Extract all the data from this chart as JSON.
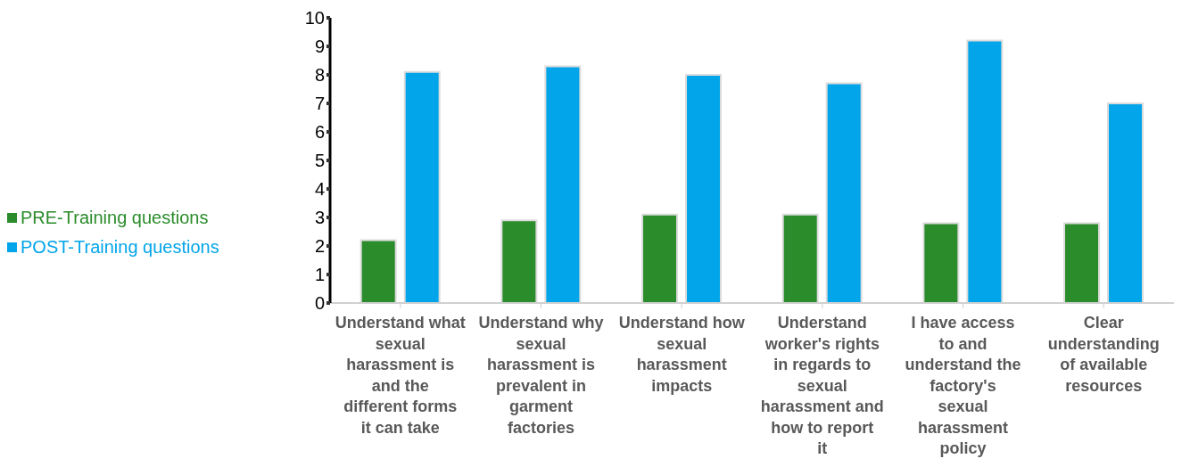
{
  "chart_data": {
    "type": "bar",
    "categories": [
      "Understand what sexual harassment is and the different forms it can take",
      "Understand why sexual harassment is prevalent in garment factories",
      "Understand how sexual harassment impacts",
      "Understand worker's rights in regards to sexual harassment and how to report it",
      "I have access to and understand the factory's sexual harassment policy",
      "Clear understanding of available resources"
    ],
    "series": [
      {
        "name": "PRE-Training questions",
        "color": "#2a8c2a",
        "values": [
          2.2,
          2.9,
          3.1,
          3.1,
          2.8,
          2.8
        ]
      },
      {
        "name": "POST-Training questions",
        "color": "#02a5ea",
        "values": [
          8.1,
          8.3,
          8.0,
          7.7,
          9.2,
          7.0
        ]
      }
    ],
    "ylim": [
      0,
      10
    ],
    "yticks": [
      0,
      1,
      2,
      3,
      4,
      5,
      6,
      7,
      8,
      9,
      10
    ],
    "grid": false,
    "legend": "left"
  }
}
